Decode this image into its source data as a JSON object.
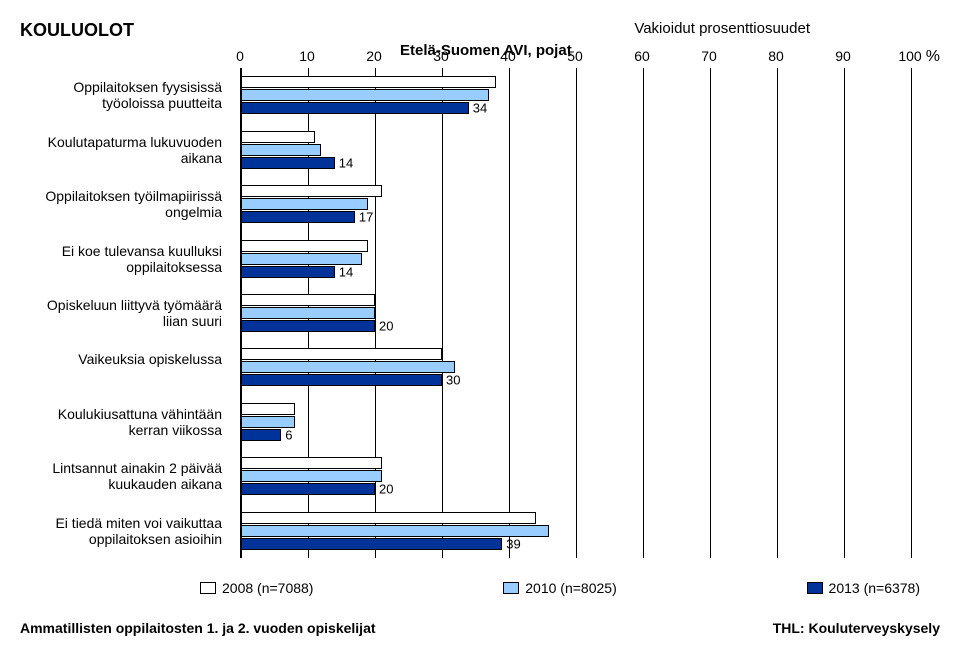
{
  "title_main": "KOULUOLOT",
  "title_sub1": "Vakioidut prosenttiosuudet",
  "title_sub2": "Etelä-Suomen AVI, pojat",
  "pct_symbol": "%",
  "chart": {
    "type": "bar",
    "orientation": "horizontal",
    "xlim": [
      0,
      100
    ],
    "xtick_step": 10,
    "xticks": [
      "0",
      "10",
      "20",
      "30",
      "40",
      "50",
      "60",
      "70",
      "80",
      "90",
      "100"
    ],
    "background_color": "#ffffff",
    "grid_color": "#000000",
    "bar_border_color": "#000000",
    "label_fontsize": 14,
    "tick_fontsize": 14,
    "series": [
      {
        "name": "2008 (n=7088)",
        "color": "#ffffff"
      },
      {
        "name": "2010 (n=8025)",
        "color": "#99ccff"
      },
      {
        "name": "2013 (n=6378)",
        "color": "#003399"
      }
    ],
    "categories": [
      {
        "label": "Oppilaitoksen fyysisissä työoloissa puutteita",
        "values": [
          38,
          37,
          34
        ],
        "show_value_index": 2
      },
      {
        "label": "Koulutapaturma lukuvuoden aikana",
        "values": [
          11,
          12,
          14
        ],
        "show_value_index": 2
      },
      {
        "label": "Oppilaitoksen työilmapiirissä ongelmia",
        "values": [
          21,
          19,
          17
        ],
        "show_value_index": 2
      },
      {
        "label": "Ei koe tulevansa kuulluksi oppilaitoksessa",
        "values": [
          19,
          18,
          14
        ],
        "show_value_index": 2
      },
      {
        "label": "Opiskeluun liittyvä työmäärä liian suuri",
        "values": [
          20,
          20,
          20
        ],
        "show_value_index": 2
      },
      {
        "label": "Vaikeuksia opiskelussa",
        "values": [
          30,
          32,
          30
        ],
        "show_value_index": 2
      },
      {
        "label": "Koulukiusattuna vähintään kerran viikossa",
        "values": [
          8,
          8,
          6
        ],
        "show_value_index": 2
      },
      {
        "label": "Lintsannut ainakin 2 päivää kuukauden aikana",
        "values": [
          21,
          21,
          20
        ],
        "show_value_index": 2
      },
      {
        "label": "Ei tiedä miten voi vaikuttaa oppilaitoksen asioihin",
        "values": [
          44,
          46,
          39
        ],
        "show_value_index": 2
      }
    ]
  },
  "footer_left": "Ammatillisten oppilaitosten 1. ja 2. vuoden opiskelijat",
  "footer_right": "THL: Kouluterveyskysely"
}
